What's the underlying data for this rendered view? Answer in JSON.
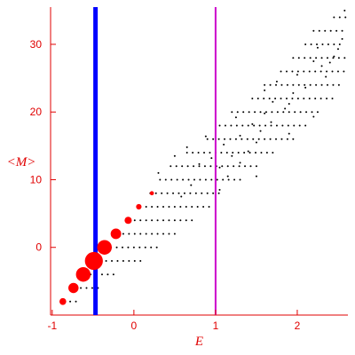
{
  "chart_data": {
    "type": "scatter",
    "title": "",
    "xlabel": "E",
    "ylabel": "<M>",
    "xlim": [
      -1.02,
      2.62
    ],
    "ylim": [
      -10,
      35.5
    ],
    "xticks": [
      -1,
      0,
      1,
      2
    ],
    "yticks": [
      0,
      10,
      20,
      30
    ],
    "grid": false,
    "colors": {
      "axes": "#e00000",
      "points": "#000000",
      "highlight": "#ff0000",
      "line_blue": "#0000ff",
      "line_magenta": "#cc00cc"
    },
    "vertical_lines": [
      {
        "x": -0.47,
        "color": "#0000ff",
        "style": "thick"
      },
      {
        "x": 1.0,
        "color": "#cc00cc",
        "style": "thin"
      }
    ],
    "highlight_points": [
      {
        "x": -0.87,
        "y": -8,
        "weight": 1.5
      },
      {
        "x": -0.74,
        "y": -6,
        "weight": 2.5
      },
      {
        "x": -0.62,
        "y": -4,
        "weight": 3.8
      },
      {
        "x": -0.49,
        "y": -2,
        "weight": 4.8
      },
      {
        "x": -0.36,
        "y": 0,
        "weight": 3.8
      },
      {
        "x": -0.22,
        "y": 2,
        "weight": 2.6
      },
      {
        "x": -0.07,
        "y": 4,
        "weight": 1.6
      },
      {
        "x": 0.06,
        "y": 6,
        "weight": 1.1
      },
      {
        "x": 0.22,
        "y": 8,
        "weight": 0.7
      }
    ],
    "rows": [
      {
        "y": -8,
        "x_start": -0.85,
        "x_end": -0.7
      },
      {
        "y": -6,
        "x_start": -0.72,
        "x_end": -0.44
      },
      {
        "y": -4,
        "x_start": -0.6,
        "x_end": -0.2
      },
      {
        "y": -2,
        "x_start": -0.48,
        "x_end": 0.08
      },
      {
        "y": 0,
        "x_start": -0.35,
        "x_end": 0.3
      },
      {
        "y": 2,
        "x_start": -0.2,
        "x_end": 0.55
      },
      {
        "y": 4,
        "x_start": -0.06,
        "x_end": 0.75
      },
      {
        "y": 6,
        "x_start": 0.08,
        "x_end": 0.95
      },
      {
        "y": 8,
        "x_start": 0.2,
        "x_end": 1.1
      },
      {
        "y": 10,
        "x_start": 0.32,
        "x_end": 1.35
      },
      {
        "y": 12,
        "x_start": 0.45,
        "x_end": 1.55
      },
      {
        "y": 14,
        "x_start": 0.65,
        "x_end": 1.75
      },
      {
        "y": 16,
        "x_start": 0.9,
        "x_end": 1.95
      },
      {
        "y": 18,
        "x_start": 1.05,
        "x_end": 2.15
      },
      {
        "y": 20,
        "x_start": 1.2,
        "x_end": 2.3
      },
      {
        "y": 22,
        "x_start": 1.45,
        "x_end": 2.45
      },
      {
        "y": 24,
        "x_start": 1.6,
        "x_end": 2.55
      },
      {
        "y": 26,
        "x_start": 1.8,
        "x_end": 2.58
      },
      {
        "y": 28,
        "x_start": 1.95,
        "x_end": 2.58
      },
      {
        "y": 30,
        "x_start": 2.1,
        "x_end": 2.55
      },
      {
        "y": 32,
        "x_start": 2.2,
        "x_end": 2.6
      },
      {
        "y": 34,
        "x_start": 2.45,
        "x_end": 2.6
      }
    ],
    "scattered_points": [
      [
        0.3,
        11
      ],
      [
        0.5,
        13.5
      ],
      [
        0.65,
        14.8
      ],
      [
        0.8,
        12.3
      ],
      [
        1.1,
        15.2
      ],
      [
        1.2,
        13.5
      ],
      [
        1.15,
        10.5
      ],
      [
        1.3,
        16.5
      ],
      [
        1.45,
        18.2
      ],
      [
        1.5,
        15.5
      ],
      [
        1.6,
        19.8
      ],
      [
        1.7,
        21.5
      ],
      [
        1.85,
        20.5
      ],
      [
        1.55,
        17.2
      ],
      [
        1.4,
        14.2
      ],
      [
        1.05,
        11.8
      ],
      [
        0.88,
        16.4
      ],
      [
        1.25,
        19.2
      ],
      [
        1.6,
        23.2
      ],
      [
        1.75,
        24.5
      ],
      [
        1.95,
        22.8
      ],
      [
        2.0,
        25.5
      ],
      [
        2.2,
        27.5
      ],
      [
        2.3,
        26.8
      ],
      [
        2.4,
        27.3
      ],
      [
        2.45,
        28.2
      ],
      [
        2.5,
        29.3
      ],
      [
        2.35,
        25.2
      ],
      [
        2.1,
        23.6
      ],
      [
        1.9,
        21.2
      ],
      [
        1.68,
        18.5
      ],
      [
        2.55,
        30.8
      ],
      [
        2.58,
        35
      ],
      [
        2.25,
        29.5
      ],
      [
        1.05,
        8.5
      ],
      [
        0.7,
        9.2
      ],
      [
        1.3,
        12.5
      ],
      [
        1.5,
        10.5
      ],
      [
        1.9,
        16.8
      ],
      [
        2.2,
        19.3
      ],
      [
        0.58,
        7.5
      ],
      [
        0.95,
        13.2
      ]
    ]
  }
}
